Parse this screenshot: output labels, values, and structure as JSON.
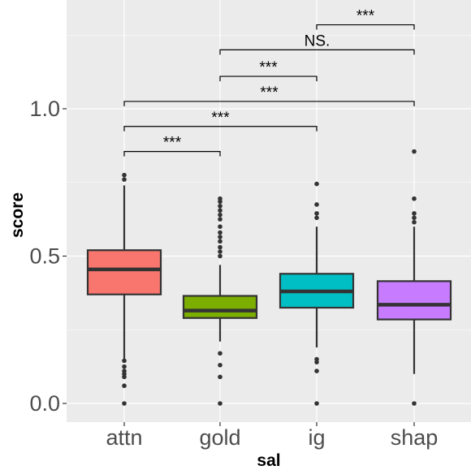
{
  "chart_data": {
    "type": "box",
    "xlabel": "sal",
    "ylabel": "score",
    "ylim": [
      -0.07,
      1.33
    ],
    "y_ticks": [
      0.0,
      0.5,
      1.0
    ],
    "y_tick_labels": [
      "0.0",
      "0.5",
      "1.0"
    ],
    "grid": true,
    "legend": "none",
    "categories": [
      "attn",
      "gold",
      "ig",
      "shap"
    ],
    "colors": [
      "#F8766D",
      "#7CAE00",
      "#00BFC4",
      "#C77CFF"
    ],
    "boxes": [
      {
        "category": "attn",
        "whisker_low": 0.15,
        "q1": 0.37,
        "median": 0.455,
        "q3": 0.52,
        "whisker_high": 0.74,
        "outliers": [
          0.0,
          0.06,
          0.09,
          0.1,
          0.11,
          0.125,
          0.145,
          0.76,
          0.775
        ]
      },
      {
        "category": "gold",
        "whisker_low": 0.21,
        "q1": 0.29,
        "median": 0.315,
        "q3": 0.365,
        "whisker_high": 0.47,
        "outliers": [
          0.0,
          0.09,
          0.13,
          0.17,
          0.5,
          0.515,
          0.53,
          0.55,
          0.565,
          0.58,
          0.6,
          0.625,
          0.64,
          0.655,
          0.67,
          0.685,
          0.695
        ]
      },
      {
        "category": "ig",
        "whisker_low": 0.19,
        "q1": 0.325,
        "median": 0.38,
        "q3": 0.44,
        "whisker_high": 0.6,
        "outliers": [
          0.0,
          0.11,
          0.14,
          0.15,
          0.63,
          0.645,
          0.675,
          0.745
        ]
      },
      {
        "category": "shap",
        "whisker_low": 0.1,
        "q1": 0.285,
        "median": 0.335,
        "q3": 0.415,
        "whisker_high": 0.6,
        "outliers": [
          0.0,
          0.615,
          0.63,
          0.645,
          0.695,
          0.855
        ]
      }
    ],
    "comparisons": [
      {
        "from": "attn",
        "to": "gold",
        "y": 0.855,
        "label": "***"
      },
      {
        "from": "attn",
        "to": "ig",
        "y": 0.94,
        "label": "***"
      },
      {
        "from": "attn",
        "to": "shap",
        "y": 1.025,
        "label": "***"
      },
      {
        "from": "gold",
        "to": "ig",
        "y": 1.11,
        "label": "***"
      },
      {
        "from": "gold",
        "to": "shap",
        "y": 1.2,
        "label": "NS."
      },
      {
        "from": "ig",
        "to": "shap",
        "y": 1.285,
        "label": "***"
      }
    ]
  }
}
